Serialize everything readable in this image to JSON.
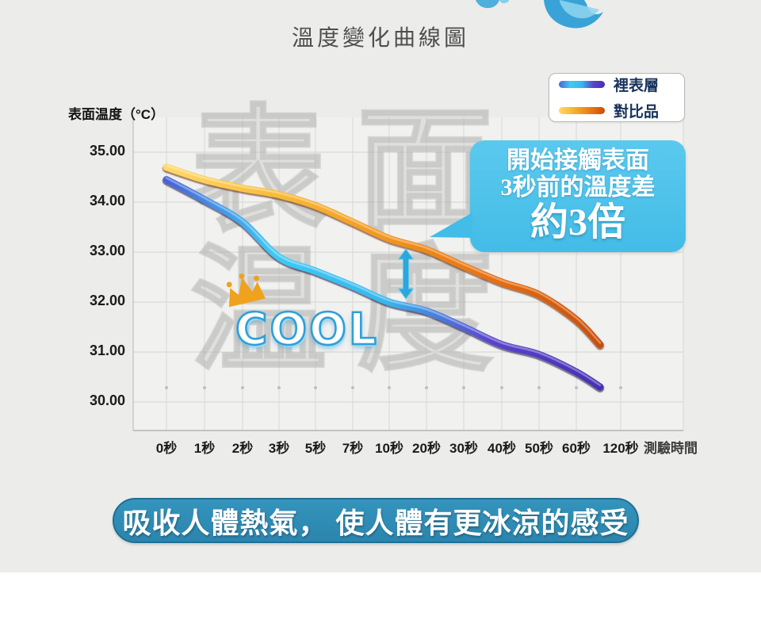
{
  "page": {
    "title": "溫度變化曲線圖",
    "banner": "吸收人體熱氣， 使人體有更冰涼的感受"
  },
  "legend": {
    "items": [
      {
        "label": "裡表層"
      },
      {
        "label": "對比品"
      }
    ]
  },
  "callout": {
    "line1": "開始接觸表面",
    "line2": "3秒前的溫度差",
    "emphasis": "約3倍"
  },
  "badge": {
    "cool": "COOL",
    "crown_icon": "crown-icon"
  },
  "watermark": {
    "line1": "表面",
    "line2": "温度"
  },
  "colors": {
    "card_bg": "#ECECEA",
    "callout_bg": "#43BCE7",
    "banner_bg": "#2B85AD",
    "arrow_color": "#2BA7DD",
    "crown_color": "#F0A11D",
    "cool_stroke": "#2F9FD8",
    "legend_text": "#16325C"
  },
  "chart_data": {
    "type": "line",
    "title": "溫度變化曲線圖",
    "xlabel": "測驗時間",
    "ylabel": "表面温度（°C）",
    "categories": [
      "0秒",
      "1秒",
      "2秒",
      "3秒",
      "5秒",
      "7秒",
      "10秒",
      "20秒",
      "30秒",
      "40秒",
      "50秒",
      "60秒",
      "120秒"
    ],
    "yticks": [
      "35.00",
      "34.00",
      "33.00",
      "32.00",
      "31.00",
      "30.00"
    ],
    "ylim": [
      29.4,
      35.6
    ],
    "grid": true,
    "legend_position": "top-right",
    "series": [
      {
        "name": "裡表層",
        "values": [
          34.45,
          34.05,
          33.6,
          32.9,
          32.62,
          32.32,
          32.0,
          31.82,
          31.5,
          31.15,
          30.95,
          30.6,
          30.3
        ],
        "colors": [
          "#4A63D8",
          "#3EC9F4",
          "#35B9EE",
          "#5B43CC",
          "#472FB2"
        ]
      },
      {
        "name": "對比品",
        "values": [
          34.7,
          34.45,
          34.28,
          34.15,
          33.93,
          33.6,
          33.27,
          33.05,
          32.72,
          32.4,
          32.15,
          31.65,
          31.15
        ],
        "colors": [
          "#FFD96A",
          "#F7BC38",
          "#F2971F",
          "#E76F12",
          "#C84E0E"
        ]
      }
    ],
    "annotations": [
      {
        "type": "callout",
        "text": "開始接觸表面 3秒前的溫度差 約3倍"
      },
      {
        "type": "double-arrow",
        "between_series": true,
        "near_category": "20秒"
      },
      {
        "type": "badge",
        "text": "COOL"
      }
    ]
  }
}
